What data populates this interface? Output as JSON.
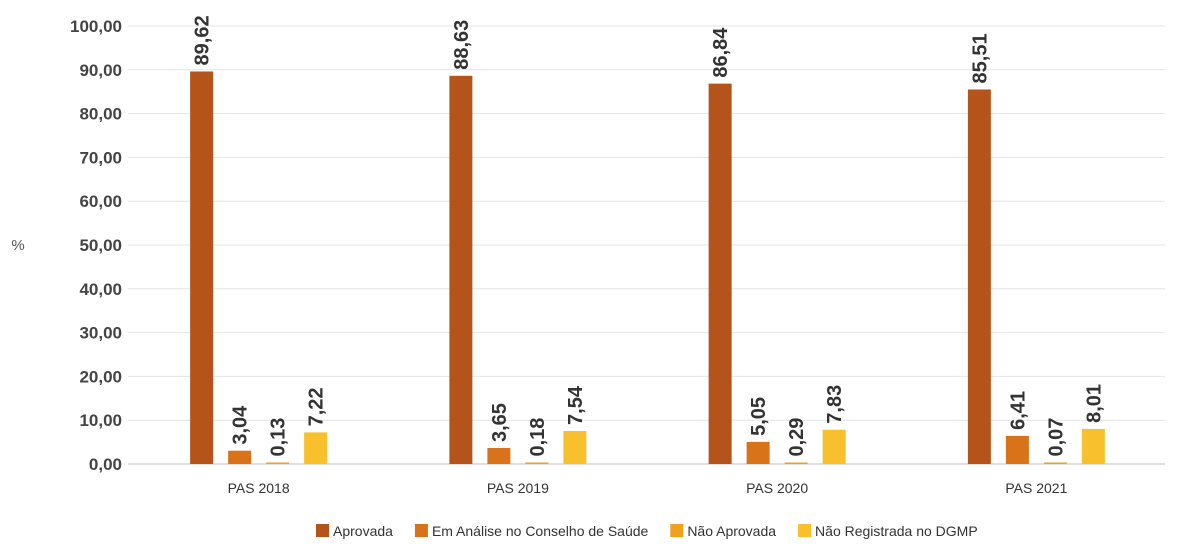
{
  "chart_data": {
    "type": "bar",
    "title": "",
    "xlabel": "",
    "ylabel": "%",
    "ylim": [
      0,
      100
    ],
    "yticks": [
      "0,00",
      "10,00",
      "20,00",
      "30,00",
      "40,00",
      "50,00",
      "60,00",
      "70,00",
      "80,00",
      "90,00",
      "100,00"
    ],
    "grid": true,
    "legend_position": "bottom",
    "categories": [
      "PAS 2018",
      "PAS 2019",
      "PAS 2020",
      "PAS 2021"
    ],
    "series": [
      {
        "name": "Aprovada",
        "color": "#B5541A",
        "values": [
          89.62,
          88.63,
          86.84,
          85.51
        ],
        "labels": [
          "89,62",
          "88,63",
          "86,84",
          "85,51"
        ]
      },
      {
        "name": "Em Análise no Conselho de Saúde",
        "color": "#D9731A",
        "values": [
          3.04,
          3.65,
          5.05,
          6.41
        ],
        "labels": [
          "3,04",
          "3,65",
          "5,05",
          "6,41"
        ]
      },
      {
        "name": "Não Aprovada",
        "color": "#F0A11E",
        "values": [
          0.13,
          0.18,
          0.29,
          0.07
        ],
        "labels": [
          "0,13",
          "0,18",
          "0,29",
          "0,07"
        ]
      },
      {
        "name": "Não Registrada no DGMP",
        "color": "#F7C02C",
        "values": [
          7.22,
          7.54,
          7.83,
          8.01
        ],
        "labels": [
          "7,22",
          "7,54",
          "7,83",
          "8,01"
        ]
      }
    ]
  }
}
